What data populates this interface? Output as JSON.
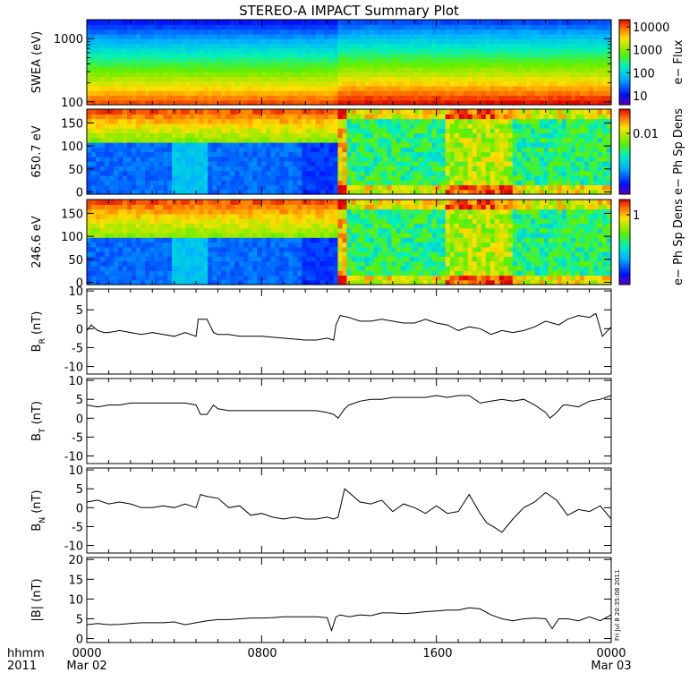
{
  "title": "STEREO-A IMPACT Summary Plot",
  "footer": {
    "unit_label": "hhmm",
    "year": "2011",
    "start_date": "Mar 02",
    "end_date": "Mar 03",
    "x_ticks": [
      "0000",
      "0800",
      "1600",
      "0000"
    ]
  },
  "stamp": "Fri Jul 8 20:35:08 2011",
  "colors": {
    "line": "#000000",
    "background": "#ffffff"
  },
  "chart_data": [
    {
      "type": "heatmap",
      "id": "swea",
      "ylabel": "SWEA (eV)",
      "y_scale": "log",
      "ylim": [
        90,
        2000
      ],
      "y_ticks": [
        "1000",
        "100"
      ],
      "colorbar": {
        "label": "e− Flux",
        "scale": "log",
        "ticks": [
          "10000",
          "1000",
          "100",
          "10"
        ]
      },
      "pattern": "energy-flux spectrogram: flux decreases with energy; enhancement after 1130"
    },
    {
      "type": "heatmap",
      "id": "pad650",
      "ylabel": "650.7 eV",
      "ylim": [
        -5,
        180
      ],
      "y_ticks": [
        "0",
        "50",
        "100",
        "150"
      ],
      "colorbar": {
        "label": "e− Ph Sp Dens",
        "scale": "log",
        "ticks": [
          "0.01"
        ]
      },
      "pattern": "pitch angle distribution; low values 0-110 deg before 1130, mixed after"
    },
    {
      "type": "heatmap",
      "id": "pad246",
      "ylabel": "246.6 eV",
      "ylim": [
        -5,
        180
      ],
      "y_ticks": [
        "0",
        "50",
        "100",
        "150"
      ],
      "colorbar": {
        "label": "e− Ph Sp Dens",
        "scale": "log",
        "ticks": [
          "1"
        ]
      },
      "pattern": "pitch angle distribution; low values 0-100 deg before 1130, mixed after"
    },
    {
      "type": "line",
      "id": "br",
      "ylabel": "B_R (nT)",
      "ylim": [
        -12,
        10.5
      ],
      "y_ticks": [
        -10,
        -5,
        0,
        5,
        10
      ],
      "x_hours": [
        0,
        0.2,
        0.5,
        0.8,
        1,
        1.5,
        2,
        2.5,
        3,
        3.5,
        4,
        4.5,
        5,
        5.1,
        5.5,
        5.8,
        6,
        6.5,
        7,
        8,
        9,
        10,
        10.5,
        11,
        11.3,
        11.4,
        11.6,
        12,
        12.5,
        13,
        13.5,
        14,
        14.5,
        15,
        15.5,
        16,
        16.5,
        17,
        17.5,
        18,
        18.5,
        19,
        19.5,
        20,
        20.5,
        21,
        21.3,
        21.6,
        22,
        22.5,
        23,
        23.3,
        23.6,
        24
      ],
      "values": [
        -0.5,
        1,
        -0.5,
        -1,
        -1,
        -0.5,
        -1,
        -1.5,
        -1,
        -1.5,
        -2,
        -1,
        -2,
        2.5,
        2.5,
        -1,
        -1.5,
        -1.5,
        -2,
        -2,
        -2.5,
        -3,
        -3,
        -2.5,
        -3,
        1,
        3.5,
        3,
        2,
        2,
        2.5,
        2,
        1.5,
        1.5,
        2.5,
        1.5,
        1,
        -0.5,
        0.5,
        0,
        -1.5,
        -0.5,
        -1,
        -0.5,
        0.5,
        2,
        1.5,
        1,
        2.5,
        3.5,
        3,
        4,
        -2,
        0.5
      ]
    },
    {
      "type": "line",
      "id": "bt",
      "ylabel": "B_T (nT)",
      "ylim": [
        -12,
        10.5
      ],
      "y_ticks": [
        -10,
        -5,
        0,
        5,
        10
      ],
      "x_hours": [
        0,
        0.5,
        1,
        1.5,
        2,
        2.5,
        3,
        3.5,
        4,
        4.5,
        5,
        5.2,
        5.5,
        5.8,
        6,
        6.5,
        7,
        7.5,
        8,
        8.5,
        9,
        9.5,
        10,
        10.5,
        11,
        11.3,
        11.5,
        11.8,
        12,
        12.5,
        13,
        13.5,
        14,
        14.5,
        15,
        15.5,
        16,
        16.5,
        17,
        17.5,
        18,
        18.5,
        19,
        19.5,
        20,
        20.5,
        21,
        21.2,
        21.5,
        21.8,
        22,
        22.5,
        23,
        23.5,
        24
      ],
      "values": [
        3.5,
        3,
        3.5,
        3.5,
        4,
        4,
        4,
        4,
        4,
        4,
        3.5,
        1,
        1,
        3.5,
        2.5,
        2,
        2,
        2,
        2,
        2,
        2,
        2,
        2,
        2,
        1.5,
        1,
        0,
        2.5,
        3.5,
        4.5,
        5,
        5,
        5.5,
        5.5,
        5.5,
        5.5,
        6,
        5.5,
        6,
        6,
        4,
        4.5,
        5,
        4.5,
        5,
        3.5,
        1.5,
        0,
        1.5,
        3.5,
        3.5,
        3,
        4.5,
        5,
        6
      ]
    },
    {
      "type": "line",
      "id": "bn",
      "ylabel": "B_N (nT)",
      "ylim": [
        -12,
        10.5
      ],
      "y_ticks": [
        -10,
        -5,
        0,
        5,
        10
      ],
      "x_hours": [
        0,
        0.5,
        1,
        1.5,
        2,
        2.5,
        3,
        3.5,
        4,
        4.5,
        5,
        5.2,
        5.5,
        6,
        6.5,
        7,
        7.5,
        8,
        8.5,
        9,
        9.5,
        10,
        10.5,
        11,
        11.3,
        11.5,
        11.8,
        12,
        12.5,
        13,
        13.5,
        14,
        14.5,
        15,
        15.5,
        16,
        16.5,
        17,
        17.5,
        18,
        18.3,
        18.6,
        19,
        19.5,
        20,
        20.5,
        21,
        21.5,
        22,
        22.5,
        23,
        23.5,
        24
      ],
      "values": [
        1.5,
        2,
        1,
        1.5,
        1,
        0,
        0,
        0.5,
        0,
        1,
        0,
        3.5,
        3,
        2.5,
        0,
        0.5,
        -2,
        -1.5,
        -2.5,
        -3,
        -2.5,
        -3,
        -3,
        -2.5,
        -3,
        -2.5,
        5,
        4,
        1.5,
        1,
        2,
        -1,
        1,
        0,
        -1.5,
        0.5,
        -1.5,
        -1,
        3.5,
        -1.5,
        -4,
        -5,
        -6.5,
        -3,
        0,
        1.5,
        4,
        2,
        -2,
        -0.5,
        -1,
        0.5,
        -3
      ]
    },
    {
      "type": "line",
      "id": "bmag",
      "ylabel": "|B| (nT)",
      "ylim": [
        -1,
        20.5
      ],
      "y_ticks": [
        0,
        5,
        10,
        15,
        20
      ],
      "x_hours": [
        0,
        0.5,
        1,
        1.5,
        2,
        2.5,
        3,
        3.5,
        4,
        4.5,
        5,
        5.5,
        6,
        6.5,
        7,
        7.5,
        8,
        8.5,
        9,
        9.5,
        10,
        10.5,
        11,
        11.2,
        11.4,
        11.6,
        12,
        12.5,
        13,
        13.5,
        14,
        14.5,
        15,
        15.5,
        16,
        16.5,
        17,
        17.5,
        18,
        18.5,
        19,
        19.5,
        20,
        20.5,
        21,
        21.3,
        21.6,
        22,
        22.5,
        23,
        23.5,
        24
      ],
      "values": [
        3.5,
        3.8,
        3.5,
        3.6,
        3.8,
        4,
        4,
        4,
        4.2,
        3.5,
        4,
        4.5,
        4.8,
        4.8,
        5,
        5.2,
        5.2,
        5.3,
        5.5,
        5.5,
        5.5,
        5.5,
        5.3,
        2,
        5.5,
        6,
        5.5,
        6,
        5.8,
        6.5,
        6.5,
        6.3,
        6.5,
        6.8,
        7,
        7.2,
        7.2,
        7.8,
        7.5,
        6,
        5,
        4.5,
        5,
        5.2,
        5,
        2.5,
        5,
        5,
        4.5,
        5.5,
        4.5,
        6
      ]
    }
  ]
}
